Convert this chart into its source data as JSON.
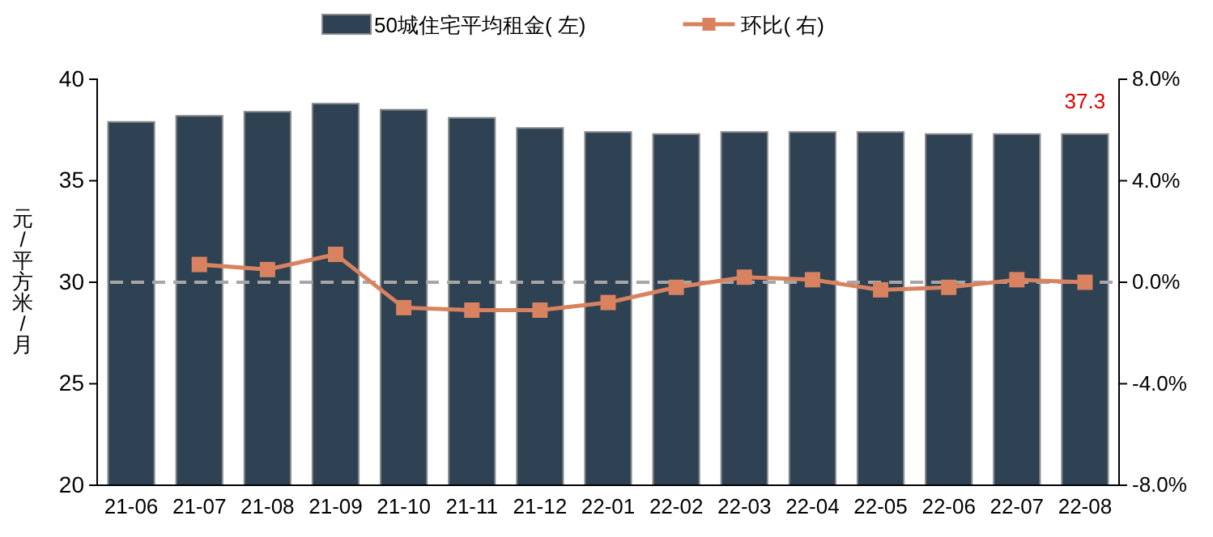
{
  "chart_data": {
    "type": "bar",
    "categories": [
      "21-06",
      "21-07",
      "21-08",
      "21-09",
      "21-10",
      "21-11",
      "21-12",
      "22-01",
      "22-02",
      "22-03",
      "22-04",
      "22-05",
      "22-06",
      "22-07",
      "22-08"
    ],
    "series": [
      {
        "name": "50城住宅平均租金( 左)",
        "color": "#2e4253",
        "values": [
          37.9,
          38.2,
          38.4,
          38.8,
          38.5,
          38.1,
          37.6,
          37.4,
          37.3,
          37.4,
          37.4,
          37.4,
          37.3,
          37.3,
          37.3
        ],
        "value_labels": [
          null,
          null,
          null,
          null,
          null,
          null,
          null,
          null,
          null,
          null,
          null,
          null,
          null,
          null,
          "37.3"
        ]
      },
      {
        "name": "环比( 右)",
        "type": "line",
        "axis": "y2",
        "color": "#d9825f",
        "marker": "square",
        "values": [
          null,
          0.7,
          0.5,
          1.1,
          -1.0,
          -1.1,
          -1.1,
          -0.8,
          -0.2,
          0.2,
          0.1,
          -0.3,
          -0.2,
          0.1,
          0.0
        ]
      }
    ],
    "ylabel": "元/平方米/月",
    "ylim": [
      20,
      40
    ],
    "yticks": [
      20,
      25,
      30,
      35,
      40
    ],
    "y2lim": [
      -8,
      8
    ],
    "y2ticks": [
      {
        "value": -8,
        "label": "-8.0%"
      },
      {
        "value": -4,
        "label": "-4.0%"
      },
      {
        "value": 0,
        "label": "0.0%"
      },
      {
        "value": 4,
        "label": "4.0%"
      },
      {
        "value": 8,
        "label": "8.0%"
      }
    ],
    "ref_lines": [
      {
        "axis": "y2",
        "value": 0,
        "label": null,
        "color": "#a6a6a6",
        "line_style": "dashed"
      }
    ],
    "legend": "top",
    "grid": false
  }
}
